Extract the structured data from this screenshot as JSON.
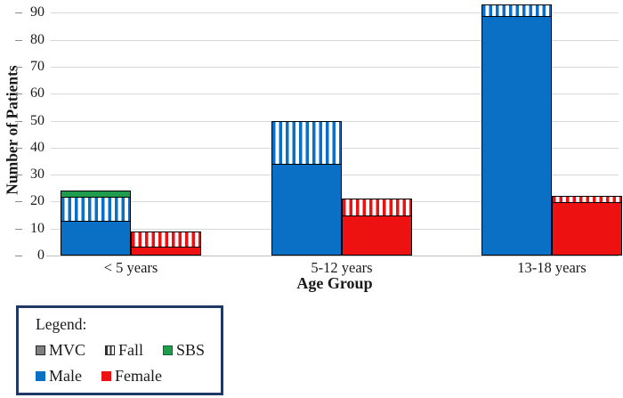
{
  "colors": {
    "male_blue": "#0A70C5",
    "female_red": "#EE1111",
    "sbs_green": "#1F9D4D",
    "mvc_gray": "#808080",
    "legend_border_navy": "#1F3864",
    "gridline_gray": "#D8D8D8"
  },
  "chart_data": {
    "type": "bar",
    "stacked": true,
    "title": "",
    "xlabel": "Age Group",
    "ylabel": "Number of Patients",
    "ylim": [
      0,
      90
    ],
    "yticks": [
      0,
      10,
      20,
      30,
      40,
      50,
      60,
      70,
      80,
      90
    ],
    "grid": true,
    "categories": [
      "< 5 years",
      "5-12 years",
      "13-18 years"
    ],
    "bars_per_category": [
      "male",
      "female"
    ],
    "groups": [
      {
        "category": "< 5 years",
        "male_bar": {
          "total": 24,
          "segments": [
            {
              "name": "Male",
              "value": 13,
              "style": "solid-blue"
            },
            {
              "name": "Fall",
              "value": 9,
              "style": "striped-blue"
            },
            {
              "name": "SBS",
              "value": 2,
              "style": "solid-green"
            }
          ]
        },
        "female_bar": {
          "total": 9,
          "segments": [
            {
              "name": "Female",
              "value": 3,
              "style": "solid-red"
            },
            {
              "name": "Fall",
              "value": 6,
              "style": "striped-red"
            }
          ]
        }
      },
      {
        "category": "5-12 years",
        "male_bar": {
          "total": 50,
          "segments": [
            {
              "name": "Male",
              "value": 34,
              "style": "solid-blue"
            },
            {
              "name": "Fall",
              "value": 16,
              "style": "striped-blue"
            }
          ]
        },
        "female_bar": {
          "total": 21,
          "segments": [
            {
              "name": "Female",
              "value": 15,
              "style": "solid-red"
            },
            {
              "name": "Fall",
              "value": 6,
              "style": "striped-red"
            }
          ]
        }
      },
      {
        "category": "13-18 years",
        "male_bar": {
          "total": 93,
          "segments": [
            {
              "name": "Male",
              "value": 89,
              "style": "solid-blue"
            },
            {
              "name": "Fall",
              "value": 4,
              "style": "striped-blue"
            }
          ]
        },
        "female_bar": {
          "total": 22,
          "segments": [
            {
              "name": "Female",
              "value": 20,
              "style": "solid-red"
            },
            {
              "name": "Fall",
              "value": 2,
              "style": "striped-red"
            }
          ]
        }
      }
    ],
    "legend": {
      "title": "Legend:",
      "position": "bottom-left",
      "items": [
        {
          "label": "MVC",
          "swatch": "mvc",
          "row": 1
        },
        {
          "label": "Fall",
          "swatch": "fall",
          "row": 1
        },
        {
          "label": "SBS",
          "swatch": "sbs",
          "row": 1
        },
        {
          "label": "Male",
          "swatch": "male",
          "row": 2
        },
        {
          "label": "Female",
          "swatch": "female",
          "row": 2
        }
      ]
    }
  }
}
